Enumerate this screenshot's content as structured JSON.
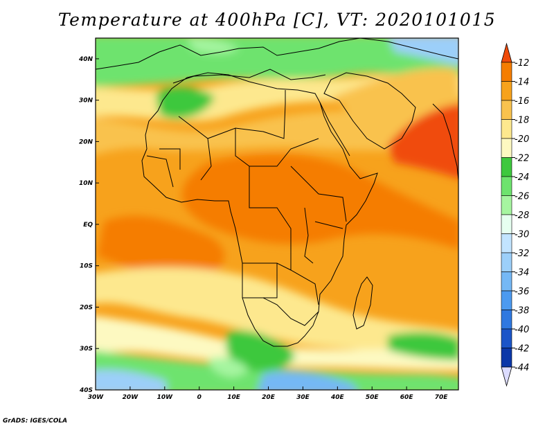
{
  "title": "Temperature at 400hPa [C], VT: 2020101015",
  "credit": "GrADS: IGES/COLA",
  "map": {
    "variable": "Temperature",
    "level": "400hPa",
    "units": "C",
    "valid_time": "2020101015",
    "lon_range": [
      -30,
      75
    ],
    "lat_range": [
      -40,
      45
    ],
    "lon_ticks": [
      "30W",
      "20W",
      "10W",
      "0",
      "10E",
      "20E",
      "30E",
      "40E",
      "50E",
      "60E",
      "70E"
    ],
    "lat_ticks": [
      "40S",
      "30S",
      "20S",
      "10S",
      "EQ",
      "10N",
      "20N",
      "30N",
      "40N"
    ]
  },
  "colorbar": {
    "labels": [
      "-12",
      "-14",
      "-16",
      "-18",
      "-20",
      "-22",
      "-24",
      "-26",
      "-28",
      "-30",
      "-32",
      "-34",
      "-36",
      "-38",
      "-40",
      "-42",
      "-44"
    ],
    "colors": [
      "#f04b0a",
      "#f57d00",
      "#f7a21c",
      "#f9c24e",
      "#fde88e",
      "#fdf9c1",
      "#3ec83e",
      "#6ee36e",
      "#a6f5a0",
      "#e6fff0",
      "#c2e4ff",
      "#9ccff9",
      "#75b8f5",
      "#4c9af0",
      "#2f78e0",
      "#1b55c8",
      "#0b37a8",
      "#111066"
    ],
    "top_color": "#f04b0a",
    "bottom_color": "#dcdcff"
  }
}
